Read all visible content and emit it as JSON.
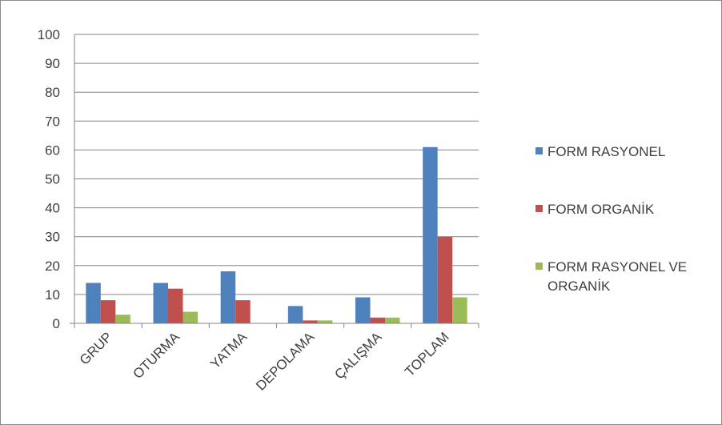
{
  "chart_data": {
    "type": "bar",
    "title": "",
    "xlabel": "",
    "ylabel": "",
    "ylim": [
      0,
      100
    ],
    "yticks": [
      0,
      10,
      20,
      30,
      40,
      50,
      60,
      70,
      80,
      90,
      100
    ],
    "grid": true,
    "legend_position": "right",
    "categories": [
      "GRUP",
      "OTURMA",
      "YATMA",
      "DEPOLAMA",
      "ÇALIŞMA",
      "TOPLAM"
    ],
    "series": [
      {
        "name": "FORM RASYONEL",
        "color": "#4f81bd",
        "values": [
          14,
          14,
          18,
          6,
          9,
          61
        ]
      },
      {
        "name": "FORM ORGANİK",
        "color": "#c0504d",
        "values": [
          8,
          12,
          8,
          1,
          2,
          30
        ]
      },
      {
        "name": "FORM RASYONEL VE ORGANİK",
        "legend_lines": [
          "FORM RASYONEL VE",
          "ORGANİK"
        ],
        "color": "#9bbb59",
        "values": [
          3,
          4,
          0,
          1,
          2,
          9
        ]
      }
    ]
  }
}
